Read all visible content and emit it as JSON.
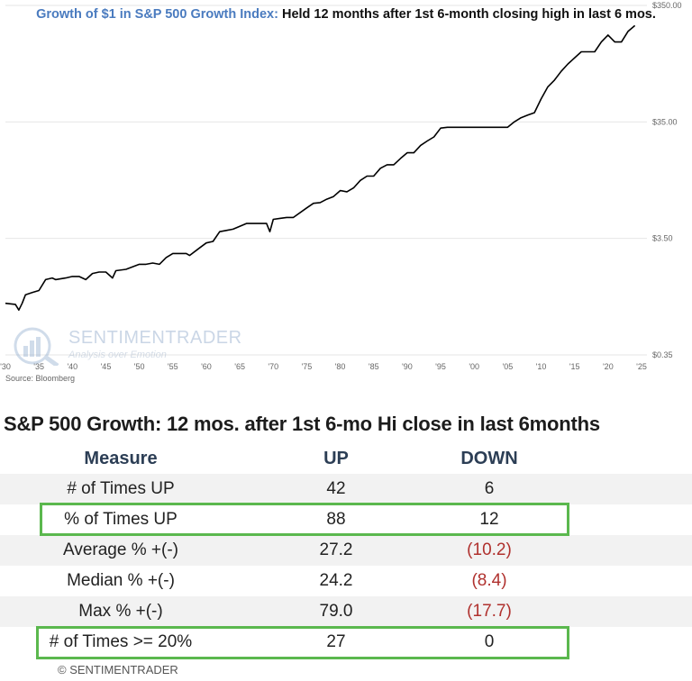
{
  "title_part1": "Growth of $1 in S&P 500 Growth Index:",
  "title_part2": "Held 12 months after 1st 6-month closing high in last 6 mos.",
  "source": "Source: Bloomberg",
  "watermark": {
    "name": "SENTIMENTRADER",
    "tagline": "Analysis over Emotion"
  },
  "chart_data": {
    "type": "line",
    "title": "Growth of $1 in S&P 500 Growth Index: Held 12 months after 1st 6-month closing high in last 6 mos.",
    "y_scale": "log",
    "ylim": [
      0.35,
      350
    ],
    "y_ticks": [
      "$350.00",
      "$35.00",
      "$3.50",
      "$0.35"
    ],
    "xlim": [
      1930,
      2025
    ],
    "x_ticks": [
      "'30",
      "'35",
      "'40",
      "'45",
      "'50",
      "'55",
      "'60",
      "'65",
      "'70",
      "'75",
      "'80",
      "'85",
      "'90",
      "'95",
      "'00",
      "'05",
      "'10",
      "'15",
      "'20",
      "'25"
    ],
    "x_tick_years": [
      1930,
      1935,
      1940,
      1945,
      1950,
      1955,
      1960,
      1965,
      1970,
      1975,
      1980,
      1985,
      1990,
      1995,
      2000,
      2005,
      2010,
      2015,
      2020,
      2025
    ],
    "grid": true,
    "series": [
      {
        "x": [
          1930,
          1931.5,
          1932,
          1932.5,
          1933,
          1934,
          1935,
          1936,
          1937,
          1937.5,
          1939,
          1940,
          1941,
          1942,
          1943,
          1944,
          1945,
          1946,
          1946.5,
          1948,
          1950,
          1951,
          1952,
          1953,
          1954,
          1955,
          1957,
          1957.5,
          1959,
          1960,
          1961,
          1962,
          1963,
          1964,
          1966,
          1968,
          1969,
          1969.5,
          1970,
          1971,
          1972,
          1973,
          1975,
          1976,
          1977,
          1978,
          1979,
          1980,
          1981,
          1982,
          1983,
          1984,
          1985,
          1986,
          1987,
          1988,
          1989,
          1990,
          1991,
          1992,
          1993,
          1994,
          1995,
          1996,
          1997,
          1998,
          1999,
          2000,
          2002,
          2005,
          2006,
          2007,
          2008,
          2009,
          2010,
          2011,
          2012,
          2013,
          2014,
          2016,
          2018,
          2019,
          2020,
          2021,
          2022,
          2023,
          2024
        ],
        "values": [
          0.97,
          0.95,
          0.85,
          0.97,
          1.15,
          1.2,
          1.25,
          1.55,
          1.6,
          1.55,
          1.6,
          1.65,
          1.65,
          1.55,
          1.75,
          1.8,
          1.8,
          1.6,
          1.85,
          1.9,
          2.1,
          2.1,
          2.15,
          2.1,
          2.4,
          2.6,
          2.6,
          2.5,
          2.9,
          3.2,
          3.3,
          4.0,
          4.1,
          4.2,
          4.7,
          4.7,
          4.7,
          4.0,
          5.1,
          5.2,
          5.3,
          5.3,
          6.4,
          7.0,
          7.1,
          7.6,
          8.0,
          9.0,
          8.8,
          9.5,
          11.0,
          12.0,
          12.0,
          14.0,
          15.0,
          15.0,
          17.0,
          19.0,
          19.0,
          22.0,
          24.0,
          26.0,
          31.0,
          31.5,
          31.5,
          31.5,
          31.5,
          31.5,
          31.5,
          31.5,
          35.0,
          38.0,
          40.0,
          42.0,
          55.0,
          70.0,
          80.0,
          95.0,
          110.0,
          140.0,
          140.0,
          170.0,
          195.0,
          170.0,
          170.0,
          210.0,
          235.0
        ]
      }
    ]
  },
  "table": {
    "title": "S&P 500 Growth: 12 mos. after 1st 6-mo Hi close in last 6months",
    "headers": [
      "Measure",
      "UP",
      "DOWN"
    ],
    "rows": [
      [
        "# of Times UP",
        "42",
        "6"
      ],
      [
        "% of Times UP",
        "88",
        "12"
      ],
      [
        "Average % +(-)",
        "27.2",
        "(10.2)"
      ],
      [
        "Median % +(-)",
        "24.2",
        "(8.4)"
      ],
      [
        "Max % +(-)",
        "79.0",
        "(17.7)"
      ],
      [
        "# of Times >= 20%",
        "27",
        "0"
      ]
    ],
    "highlight_border_color": "#5bb84e",
    "negative_color": "#b0312e"
  },
  "footer": "© SENTIMENTRADER"
}
